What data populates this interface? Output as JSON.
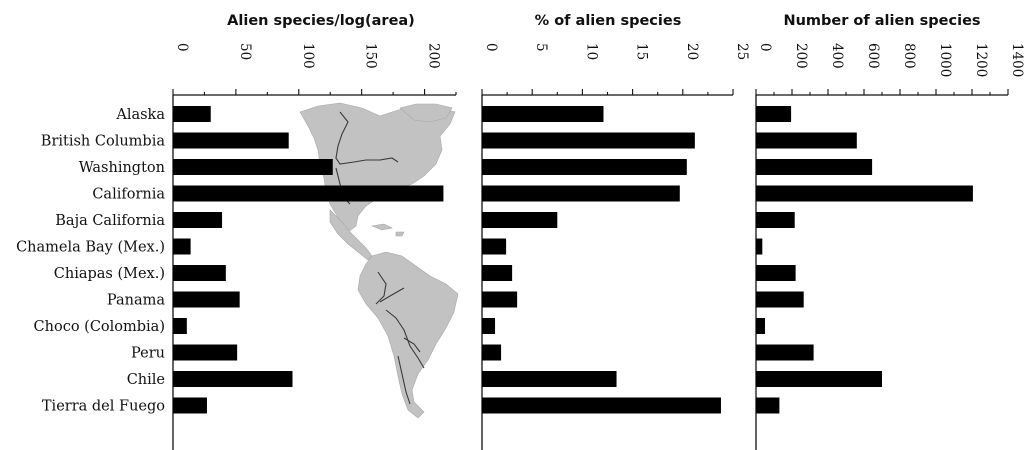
{
  "chart_data": {
    "type": "bar",
    "orientation": "horizontal",
    "categories": [
      "Alaska",
      "British Columbia",
      "Washington",
      "California",
      "Baja California",
      "Chamela Bay (Mex.)",
      "Chiapas (Mex.)",
      "Panama",
      "Choco (Colombia)",
      "Peru",
      "Chile",
      "Tierra del Fuego"
    ],
    "panels": [
      {
        "title": "Alien species/log(area)",
        "ticks": [
          0,
          50,
          100,
          150,
          200
        ],
        "xlim": [
          0,
          225
        ],
        "values": [
          30,
          92,
          127,
          215,
          39,
          14,
          42,
          53,
          11,
          51,
          95,
          27
        ]
      },
      {
        "title": "% of alien species",
        "ticks": [
          0,
          5,
          10,
          15,
          20,
          25
        ],
        "xlim": [
          0,
          25
        ],
        "values": [
          12.1,
          21.2,
          20.4,
          19.7,
          7.5,
          2.4,
          3.0,
          3.5,
          1.3,
          1.9,
          13.4,
          23.8
        ]
      },
      {
        "title": "Number of alien species",
        "ticks": [
          0,
          200,
          400,
          600,
          800,
          1000,
          1200,
          1400
        ],
        "xlim": [
          0,
          1400
        ],
        "values": [
          195,
          560,
          645,
          1205,
          215,
          35,
          220,
          265,
          50,
          320,
          700,
          130
        ]
      }
    ],
    "grid": false,
    "legend": "none"
  }
}
